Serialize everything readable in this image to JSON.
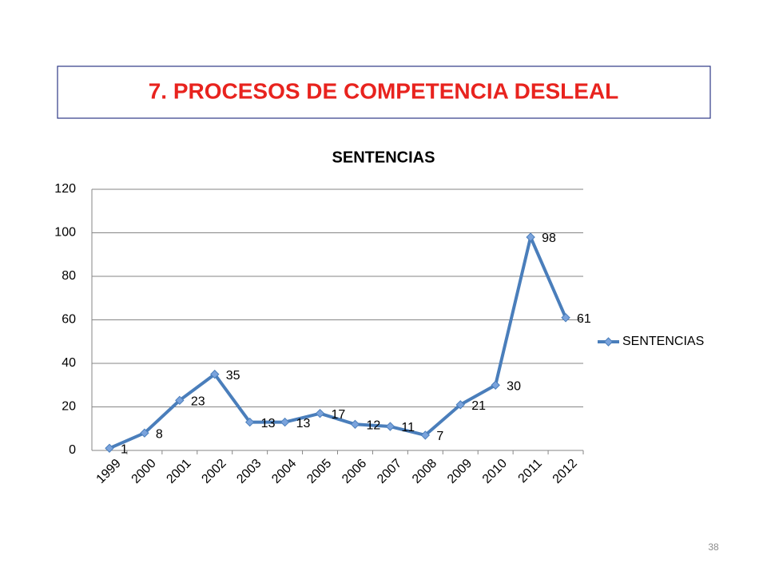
{
  "slide_title": "7.  PROCESOS DE COMPETENCIA DESLEAL",
  "page_number": "38",
  "chart_data": {
    "type": "line",
    "title": "SENTENCIAS",
    "categories": [
      "1999",
      "2000",
      "2001",
      "2002",
      "2003",
      "2004",
      "2005",
      "2006",
      "2007",
      "2008",
      "2009",
      "2010",
      "2011",
      "2012"
    ],
    "series": [
      {
        "name": "SENTENCIAS",
        "color": "#4a7ebb",
        "values": [
          1,
          8,
          23,
          35,
          13,
          13,
          17,
          12,
          11,
          7,
          21,
          30,
          98,
          61
        ]
      }
    ],
    "ylim": [
      0,
      120
    ],
    "yticks": [
      0,
      20,
      40,
      60,
      80,
      100,
      120
    ],
    "grid": true,
    "legend": "right"
  }
}
